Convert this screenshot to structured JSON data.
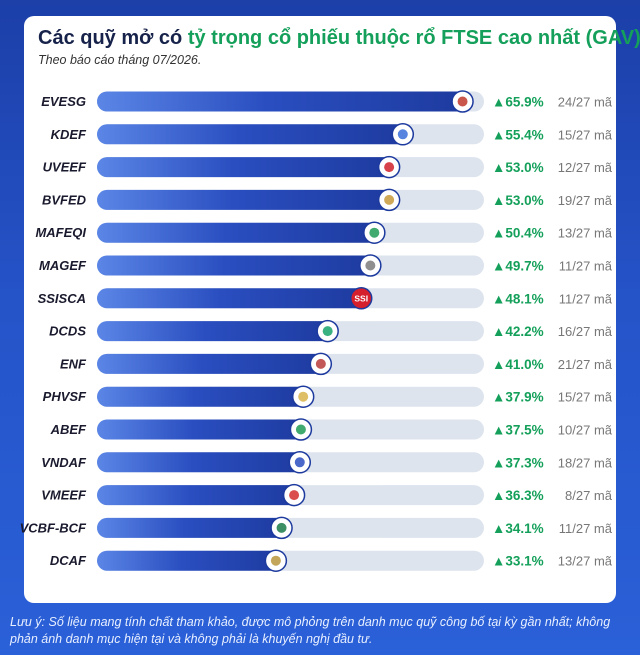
{
  "title_prefix": "Các quỹ mở có ",
  "title_highlight": "tỷ trọng cổ phiếu thuộc rổ FTSE cao nhất (GAV)",
  "subtitle": "Theo báo cáo tháng 07/2026.",
  "footnote": "Lưu ý: Số liệu mang tính chất tham khảo, được mô phỏng trên danh mục quỹ công bố tại kỳ gần nhất; không phản ánh danh mục hiện tại và không phải là khuyến nghị đầu tư.",
  "colors": {
    "bar": "#2a4ec0",
    "track": "#dde4ee",
    "positive": "#14a05a"
  },
  "chart_data": {
    "type": "bar",
    "orientation": "horizontal",
    "categories": [
      "EVESG",
      "KDEF",
      "UVEEF",
      "BVFED",
      "MAFEQI",
      "MAGEF",
      "SSISCA",
      "DCDS",
      "ENF",
      "PHVSF",
      "ABEF",
      "VNDAF",
      "VMEEF",
      "VCBF-BCF",
      "DCAF"
    ],
    "values": [
      65.9,
      55.4,
      53.0,
      53.0,
      50.4,
      49.7,
      48.1,
      42.2,
      41.0,
      37.9,
      37.5,
      37.3,
      36.3,
      34.1,
      33.1
    ],
    "value_labels": [
      "▲65.9%",
      "▲55.4%",
      "▲53.0%",
      "▲53.0%",
      "▲50.4%",
      "▲49.7%",
      "▲48.1%",
      "▲42.2%",
      "▲41.0%",
      "▲37.9%",
      "▲37.5%",
      "▲37.3%",
      "▲36.3%",
      "▲34.1%",
      "▲33.1%"
    ],
    "counts": [
      "24/27 mã",
      "15/27 mã",
      "12/27 mã",
      "19/27 mã",
      "13/27 mã",
      "11/27 mã",
      "11/27 mã",
      "16/27 mã",
      "21/27 mã",
      "15/27 mã",
      "10/27 mã",
      "18/27 mã",
      "8/27 mã",
      "11/27 mã",
      "13/27 mã"
    ],
    "logo_icons": [
      "evesg-logo-icon",
      "kdef-logo-icon",
      "uveef-logo-icon",
      "bvfed-logo-icon",
      "mafeqi-logo-icon",
      "magef-logo-icon",
      "ssisca-logo-icon",
      "dcds-logo-icon",
      "enf-logo-icon",
      "phvsf-logo-icon",
      "abef-logo-icon",
      "vndaf-logo-icon",
      "vmeef-logo-icon",
      "vcbf-bcf-logo-icon",
      "dcaf-logo-icon"
    ],
    "xlim": [
      0,
      68
    ],
    "grid": false,
    "legend": "none"
  }
}
